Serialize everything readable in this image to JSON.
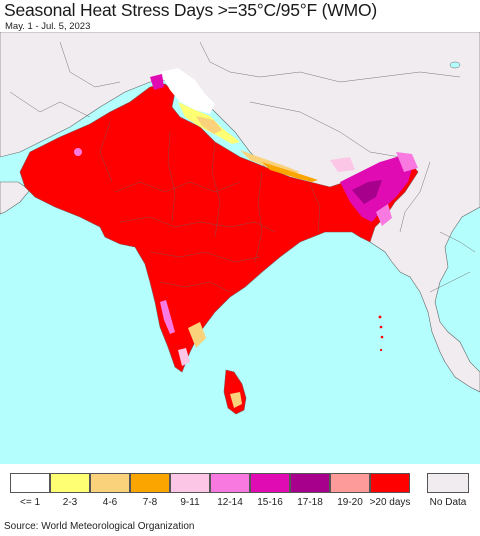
{
  "header": {
    "title": "Seasonal Heat Stress Days >=35°C/95°F (WMO)",
    "date_range": "May. 1 - Jul. 5, 2023"
  },
  "colors": {
    "ocean": "#b4fefe",
    "land_other": "#f0ecf0",
    "heat": "#ff0000",
    "border": "#7a5a5a"
  },
  "legend": {
    "items": [
      {
        "label": "<= 1",
        "color": "#ffffff"
      },
      {
        "label": "2-3",
        "color": "#ffff73"
      },
      {
        "label": "4-6",
        "color": "#fbd27c"
      },
      {
        "label": "7-8",
        "color": "#faa500"
      },
      {
        "label": "9-11",
        "color": "#fcc7e6"
      },
      {
        "label": "12-14",
        "color": "#f87ae0"
      },
      {
        "label": "15-16",
        "color": "#e00bb2"
      },
      {
        "label": "17-18",
        "color": "#a6008c"
      },
      {
        "label": "19-20",
        "color": "#fd9b9b"
      },
      {
        "label": ">20 days",
        "color": "#ff0000"
      }
    ],
    "no_data": {
      "label": "No Data",
      "color": "#f0ecf0"
    }
  },
  "footer": {
    "source": "Source: World Meteorological Organization"
  }
}
